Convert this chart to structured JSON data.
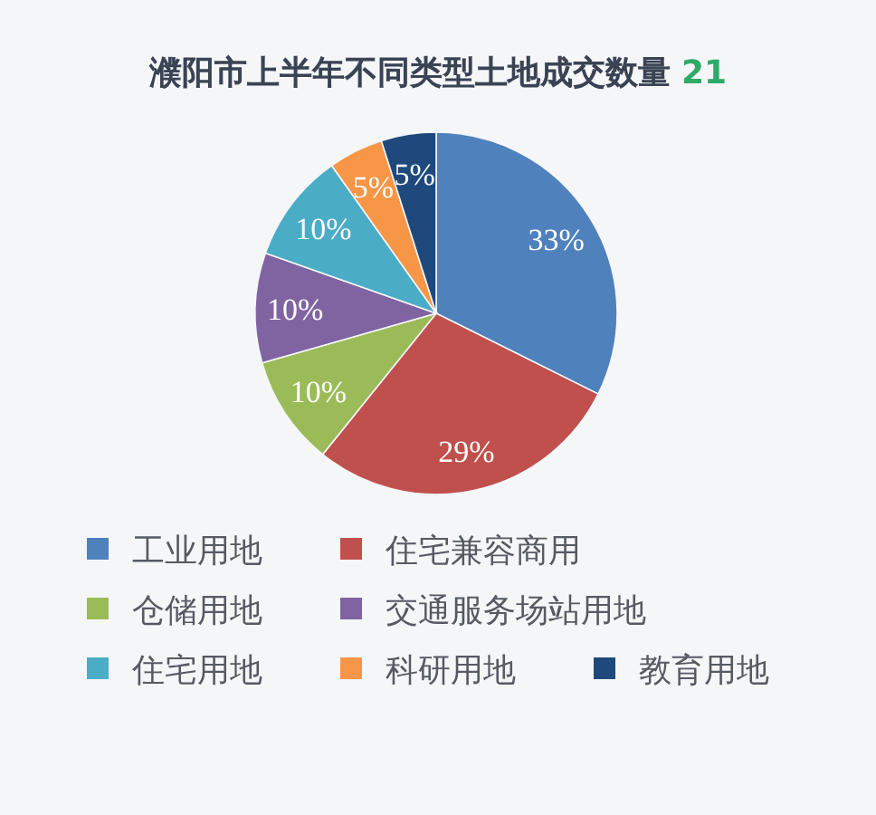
{
  "chart_data": {
    "type": "pie",
    "title": "濮阳市上半年不同类型土地成交数量",
    "subtitle": "21",
    "categories": [
      "工业用地",
      "住宅兼容商用",
      "仓储用地",
      "交通服务场站用地",
      "住宅用地",
      "科研用地",
      "教育用地"
    ],
    "values": [
      33,
      29,
      10,
      10,
      10,
      5,
      5
    ],
    "colors": [
      "#4f81bd",
      "#c0504d",
      "#9bbb59",
      "#8064a2",
      "#4bacc6",
      "#f79646",
      "#1f497d"
    ],
    "value_labels": [
      "33%",
      "29%",
      "10%",
      "10%",
      "10%",
      "5%",
      "5%"
    ],
    "legend": "bottom"
  }
}
